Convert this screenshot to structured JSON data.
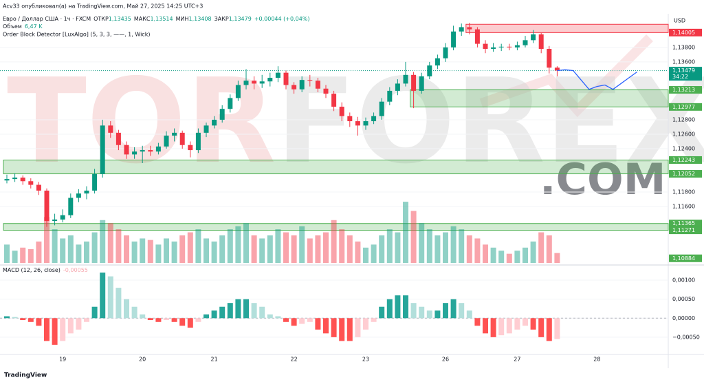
{
  "header": {
    "publisher": "Acv33 опубликовал(а) на TradingView.com, Май 27, 2025 14:25 UTC+3",
    "legend": [
      {
        "label": "ОТКР",
        "value": "1,13435"
      },
      {
        "label": "МАКС",
        "value": "1,13514"
      },
      {
        "label": "МИН",
        "value": "1,13408"
      },
      {
        "label": "ЗАКР",
        "value": "1,13479"
      }
    ],
    "change": "+0,00044 (+0,04%)",
    "indicator": "Order Block Detector [LuxAlgo] (5, 3, 3, ——, 1, Wick)"
  },
  "watermark": [
    "TOR",
    "FOREX",
    ".COM"
  ],
  "footer": "TradingView",
  "chart_data": [
    {
      "type": "candlestick",
      "title": "Евро / Доллар США · 1ч · FXCM",
      "axis_label": "USD",
      "up_color": "#089981",
      "down_color": "#f23645",
      "categories": [
        null,
        null,
        null,
        null,
        null,
        null,
        null,
        "19",
        null,
        null,
        null,
        null,
        null,
        null,
        null,
        null,
        null,
        "20",
        null,
        null,
        null,
        null,
        null,
        null,
        null,
        null,
        "21",
        null,
        null,
        null,
        null,
        null,
        null,
        null,
        null,
        null,
        "22",
        null,
        null,
        null,
        null,
        null,
        null,
        null,
        null,
        "23",
        null,
        null,
        null,
        null,
        null,
        null,
        null,
        null,
        null,
        "26",
        null,
        null,
        null,
        null,
        null,
        null,
        null,
        null,
        "27",
        null,
        null,
        null,
        null,
        null,
        null,
        null,
        null,
        null,
        "28",
        null,
        null,
        null,
        null,
        null
      ],
      "ohlc": [
        [
          1.1196,
          1.1204,
          1.1192,
          1.1198
        ],
        [
          1.1198,
          1.1206,
          1.1194,
          1.12
        ],
        [
          1.12,
          1.1203,
          1.119,
          1.1195
        ],
        [
          1.1195,
          1.1199,
          1.1185,
          1.119
        ],
        [
          1.119,
          1.1194,
          1.1176,
          1.1182
        ],
        [
          1.1182,
          1.1185,
          1.1132,
          1.114
        ],
        [
          1.114,
          1.115,
          1.1134,
          1.1142
        ],
        [
          1.1142,
          1.1156,
          1.1138,
          1.1148
        ],
        [
          1.1148,
          1.1178,
          1.1144,
          1.1172
        ],
        [
          1.1172,
          1.1184,
          1.1166,
          1.1178
        ],
        [
          1.1178,
          1.1188,
          1.117,
          1.1182
        ],
        [
          1.1182,
          1.1212,
          1.1178,
          1.1205
        ],
        [
          1.1205,
          1.128,
          1.12,
          1.1272
        ],
        [
          1.1272,
          1.1278,
          1.1255,
          1.1262
        ],
        [
          1.1262,
          1.1266,
          1.1238,
          1.1245
        ],
        [
          1.1245,
          1.125,
          1.1226,
          1.1232
        ],
        [
          1.1232,
          1.1242,
          1.1226,
          1.1236
        ],
        [
          1.1236,
          1.1244,
          1.122,
          1.1238
        ],
        [
          1.1238,
          1.1244,
          1.123,
          1.1236
        ],
        [
          1.1236,
          1.1248,
          1.1232,
          1.1243
        ],
        [
          1.1243,
          1.1264,
          1.124,
          1.1258
        ],
        [
          1.1258,
          1.1268,
          1.125,
          1.1262
        ],
        [
          1.1262,
          1.1265,
          1.124,
          1.1245
        ],
        [
          1.1245,
          1.125,
          1.1228,
          1.1238
        ],
        [
          1.1238,
          1.1268,
          1.1234,
          1.1262
        ],
        [
          1.1262,
          1.1276,
          1.1256,
          1.1272
        ],
        [
          1.1272,
          1.1285,
          1.1268,
          1.128
        ],
        [
          1.128,
          1.13,
          1.1276,
          1.1295
        ],
        [
          1.1295,
          1.1315,
          1.129,
          1.131
        ],
        [
          1.131,
          1.1334,
          1.1306,
          1.1328
        ],
        [
          1.1328,
          1.135,
          1.1322,
          1.1334
        ],
        [
          1.1334,
          1.134,
          1.1322,
          1.133
        ],
        [
          1.133,
          1.1342,
          1.1324,
          1.1333
        ],
        [
          1.1333,
          1.1345,
          1.1326,
          1.1338
        ],
        [
          1.1338,
          1.1354,
          1.1332,
          1.1345
        ],
        [
          1.1345,
          1.1348,
          1.1322,
          1.1328
        ],
        [
          1.1328,
          1.1332,
          1.1316,
          1.1322
        ],
        [
          1.1322,
          1.134,
          1.1318,
          1.1335
        ],
        [
          1.1335,
          1.1342,
          1.1326,
          1.1334
        ],
        [
          1.1334,
          1.1338,
          1.1318,
          1.1323
        ],
        [
          1.1323,
          1.1328,
          1.131,
          1.1316
        ],
        [
          1.1316,
          1.132,
          1.1292,
          1.1298
        ],
        [
          1.1298,
          1.1304,
          1.1278,
          1.1285
        ],
        [
          1.1285,
          1.129,
          1.127,
          1.1278
        ],
        [
          1.1278,
          1.1284,
          1.1258,
          1.1272
        ],
        [
          1.1272,
          1.1283,
          1.1266,
          1.1278
        ],
        [
          1.1278,
          1.129,
          1.1274,
          1.1285
        ],
        [
          1.1285,
          1.131,
          1.128,
          1.1305
        ],
        [
          1.1305,
          1.1325,
          1.13,
          1.132
        ],
        [
          1.132,
          1.1336,
          1.1314,
          1.133
        ],
        [
          1.133,
          1.136,
          1.1326,
          1.1342
        ],
        [
          1.1342,
          1.1346,
          1.1296,
          1.132
        ],
        [
          1.132,
          1.1345,
          1.1316,
          1.134
        ],
        [
          1.134,
          1.136,
          1.1336,
          1.1355
        ],
        [
          1.1355,
          1.137,
          1.135,
          1.1365
        ],
        [
          1.1365,
          1.1386,
          1.136,
          1.138
        ],
        [
          1.138,
          1.141,
          1.1376,
          1.1402
        ],
        [
          1.1402,
          1.1413,
          1.1396,
          1.1408
        ],
        [
          1.1408,
          1.1414,
          1.1398,
          1.1405
        ],
        [
          1.1405,
          1.1408,
          1.138,
          1.1385
        ],
        [
          1.1385,
          1.139,
          1.1372,
          1.1378
        ],
        [
          1.1378,
          1.1386,
          1.1374,
          1.138
        ],
        [
          1.138,
          1.1385,
          1.1375,
          1.1381
        ],
        [
          1.1381,
          1.1385,
          1.1376,
          1.138
        ],
        [
          1.138,
          1.1388,
          1.1376,
          1.1383
        ],
        [
          1.1383,
          1.1396,
          1.138,
          1.139
        ],
        [
          1.139,
          1.1404,
          1.1386,
          1.1398
        ],
        [
          1.1398,
          1.14,
          1.1372,
          1.1378
        ],
        [
          1.1378,
          1.1382,
          1.1344,
          1.1352
        ],
        [
          1.1352,
          1.1354,
          1.134,
          1.1348
        ],
        null,
        null,
        null,
        null,
        null,
        null,
        null,
        null,
        null,
        null
      ],
      "ylim": [
        1.1082,
        1.1417
      ],
      "yticks": [
        {
          "value": 1.138,
          "label": "1,13800"
        },
        {
          "value": 1.136,
          "label": "1,13600"
        },
        {
          "value": 1.128,
          "label": "1,12800"
        },
        {
          "value": 1.126,
          "label": "1,12600"
        },
        {
          "value": 1.124,
          "label": "1,12400"
        },
        {
          "value": 1.118,
          "label": "1,11800"
        },
        {
          "value": 1.116,
          "label": "1,11600"
        }
      ],
      "zones": [
        {
          "from": 1.14005,
          "to": 1.1412,
          "x_start": 58,
          "color": "#f23645"
        },
        {
          "from": 1.12977,
          "to": 1.13213,
          "x_start": 51,
          "color": "#4caf50"
        },
        {
          "from": 1.12052,
          "to": 1.12243,
          "x_start": 0,
          "color": "#4caf50"
        },
        {
          "from": 1.11271,
          "to": 1.11365,
          "x_start": 0,
          "color": "#4caf50"
        }
      ],
      "price_labels": [
        {
          "value": 1.14005,
          "label": "1,14005",
          "color": "#f23645"
        },
        {
          "value": 1.13213,
          "label": "1,13213",
          "color": "#4caf50"
        },
        {
          "value": 1.12977,
          "label": "1,12977",
          "color": "#4caf50"
        },
        {
          "value": 1.12243,
          "label": "1,12243",
          "color": "#4caf50"
        },
        {
          "value": 1.12052,
          "label": "1,12052",
          "color": "#4caf50"
        },
        {
          "value": 1.11365,
          "label": "1,11365",
          "color": "#4caf50"
        },
        {
          "value": 1.11271,
          "label": "1,11271",
          "color": "#4caf50"
        },
        {
          "value": 1.10884,
          "label": "1,10884",
          "color": "#4caf50"
        }
      ],
      "current": {
        "value": 1.13479,
        "label": "1,13479",
        "countdown": "34:22",
        "color": "#089981"
      },
      "forecast": {
        "color": "#2962ff",
        "values": [
          null,
          null,
          null,
          null,
          null,
          null,
          null,
          null,
          null,
          null,
          null,
          null,
          null,
          null,
          null,
          null,
          null,
          null,
          null,
          null,
          null,
          null,
          null,
          null,
          null,
          null,
          null,
          null,
          null,
          null,
          null,
          null,
          null,
          null,
          null,
          null,
          null,
          null,
          null,
          null,
          null,
          null,
          null,
          null,
          null,
          null,
          null,
          null,
          null,
          null,
          null,
          null,
          null,
          null,
          null,
          null,
          null,
          null,
          null,
          null,
          null,
          null,
          null,
          null,
          null,
          null,
          null,
          null,
          null,
          1.1348,
          1.1349,
          1.1348,
          1.1335,
          1.1322,
          1.1326,
          1.1328,
          1.1322,
          1.133,
          1.1338,
          1.1346
        ]
      }
    },
    {
      "type": "bar",
      "title": "Объем",
      "legend_value": "6,47 K",
      "up_color": "rgba(8,153,129,0.45)",
      "down_color": "rgba(242,54,69,0.45)",
      "values": [
        12,
        8,
        10,
        9,
        14,
        30,
        22,
        16,
        18,
        12,
        14,
        20,
        28,
        26,
        22,
        18,
        14,
        16,
        15,
        12,
        16,
        14,
        18,
        20,
        22,
        16,
        14,
        18,
        22,
        24,
        26,
        18,
        16,
        18,
        22,
        20,
        18,
        24,
        16,
        18,
        20,
        28,
        22,
        18,
        14,
        10,
        12,
        18,
        22,
        20,
        40,
        34,
        26,
        22,
        18,
        20,
        24,
        22,
        18,
        16,
        12,
        10,
        8,
        6,
        8,
        10,
        14,
        20,
        18,
        6.47,
        null,
        null,
        null,
        null,
        null,
        null,
        null,
        null,
        null,
        null
      ],
      "ylim": [
        0,
        45
      ]
    },
    {
      "type": "bar",
      "title": "MACD (12, 26, close)",
      "legend_value": "-0,00055",
      "colors": [
        "#26a69a",
        "#b2dfdb",
        "#ff5252",
        "#ffcdd2"
      ],
      "values": [
        5e-05,
        3e-05,
        -5e-05,
        -0.0001,
        -0.0002,
        -0.0006,
        -0.0007,
        -0.0006,
        -0.0004,
        -0.0003,
        -0.0001,
        0.0003,
        0.0012,
        0.0011,
        0.0008,
        0.0005,
        0.0003,
        0.0001,
        -5e-05,
        -0.0001,
        -5e-05,
        -0.0001,
        -0.0002,
        -0.00025,
        -0.0001,
        0.0001,
        0.0002,
        0.0003,
        0.0004,
        0.0005,
        0.0005,
        0.0004,
        0.0003,
        0.0001,
        5e-05,
        -0.0001,
        -0.0002,
        -0.00015,
        -0.0001,
        -0.0003,
        -0.0004,
        -0.0005,
        -0.0006,
        -0.0006,
        -0.0005,
        -0.0003,
        -0.0001,
        0.0003,
        0.0005,
        0.0006,
        0.0006,
        0.0004,
        0.0003,
        0.0002,
        0.0002,
        0.0004,
        0.0005,
        0.0004,
        0.0002,
        -0.0002,
        -0.0004,
        -0.0005,
        -0.00045,
        -0.0004,
        -0.0003,
        -0.0002,
        -0.0003,
        -0.0005,
        -0.0006,
        -0.00055,
        null,
        null,
        null,
        null,
        null,
        null,
        null,
        null,
        null,
        null
      ],
      "ylim": [
        -0.000955,
        0.001345
      ],
      "yticks": [
        {
          "value": 0.001,
          "label": "0,00100"
        },
        {
          "value": 0.0005,
          "label": "0,00050"
        },
        {
          "value": 0,
          "label": "0,00000"
        },
        {
          "value": -0.0005,
          "label": "−0,00050"
        }
      ]
    }
  ]
}
